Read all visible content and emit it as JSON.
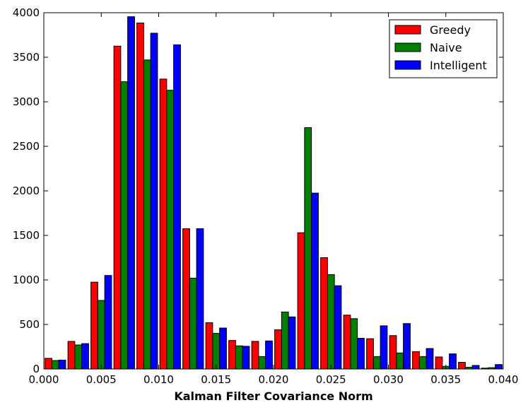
{
  "chart_data": {
    "type": "bar",
    "title": "",
    "xlabel": "Kalman Filter Covariance Norm",
    "ylabel": "",
    "xlim": [
      0.0,
      0.04
    ],
    "ylim": [
      0,
      4000
    ],
    "bin_width": 0.002,
    "bin_starts": [
      0.0,
      0.002,
      0.004,
      0.006,
      0.008,
      0.01,
      0.012,
      0.014,
      0.016,
      0.018,
      0.02,
      0.022,
      0.024,
      0.026,
      0.028,
      0.03,
      0.032,
      0.034,
      0.036,
      0.038
    ],
    "x_ticks": [
      "0.000",
      "0.005",
      "0.010",
      "0.015",
      "0.020",
      "0.025",
      "0.030",
      "0.035",
      "0.040"
    ],
    "y_ticks": [
      "0",
      "500",
      "1000",
      "1500",
      "2000",
      "2500",
      "3000",
      "3500",
      "4000"
    ],
    "x_tick_values": [
      0.0,
      0.005,
      0.01,
      0.015,
      0.02,
      0.025,
      0.03,
      0.035,
      0.04
    ],
    "y_tick_values": [
      0,
      500,
      1000,
      1500,
      2000,
      2500,
      3000,
      3500,
      4000
    ],
    "grid": false,
    "legend_position": "top-right",
    "series": [
      {
        "name": "Greedy",
        "color": "#ff0000",
        "values": [
          120,
          310,
          975,
          3625,
          3885,
          3255,
          1575,
          520,
          320,
          310,
          440,
          1530,
          1250,
          605,
          340,
          375,
          195,
          135,
          75,
          10
        ]
      },
      {
        "name": "Naive",
        "color": "#008000",
        "values": [
          95,
          270,
          770,
          3225,
          3470,
          3130,
          1020,
          400,
          260,
          140,
          640,
          2710,
          1060,
          565,
          140,
          180,
          140,
          30,
          20,
          15
        ]
      },
      {
        "name": "Intelligent",
        "color": "#0000ff",
        "values": [
          100,
          285,
          1050,
          3955,
          3770,
          3640,
          1575,
          460,
          255,
          315,
          585,
          1975,
          935,
          345,
          485,
          510,
          230,
          170,
          40,
          50
        ]
      }
    ]
  }
}
